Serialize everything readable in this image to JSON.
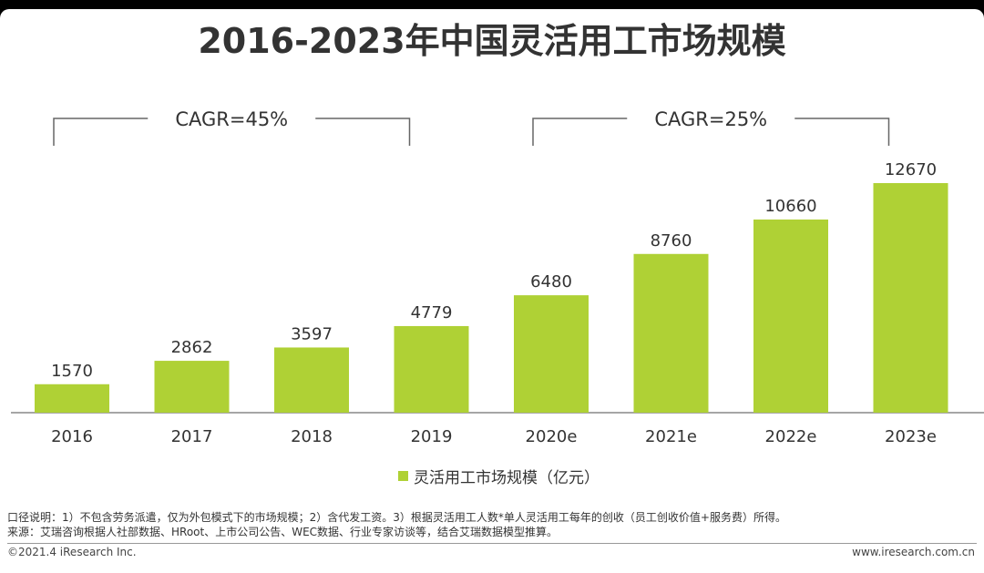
{
  "title": "2016-2023年中国灵活用工市场规模",
  "chart_data": {
    "type": "bar",
    "title": "2016-2023年中国灵活用工市场规模",
    "categories": [
      "2016",
      "2017",
      "2018",
      "2019",
      "2020e",
      "2021e",
      "2022e",
      "2023e"
    ],
    "series": [
      {
        "name": "灵活用工市场规模（亿元）",
        "values": [
          1570,
          2862,
          3597,
          4779,
          6480,
          8760,
          10660,
          12670
        ]
      }
    ],
    "data_labels": [
      "1570",
      "2862",
      "3597",
      "4779",
      "6480",
      "8760",
      "10660",
      "12670"
    ],
    "ylim": [
      0,
      12670
    ],
    "grid": false,
    "legend_position": "bottom",
    "annotations": [
      {
        "text": "CAGR=45%",
        "from_index": 0,
        "to_index": 3
      },
      {
        "text": "CAGR=25%",
        "from_index": 4,
        "to_index": 7
      }
    ]
  },
  "colors": {
    "bar": "#afd135",
    "axis": "#888888",
    "text": "#333333",
    "bracket": "#666666"
  },
  "legend": {
    "label": "灵活用工市场规模（亿元）"
  },
  "notes": {
    "line1": "口径说明：1）不包含劳务派遣，仅为外包模式下的市场规模；2）含代发工资。3）根据灵活用工人数*单人灵活用工每年的创收（员工创收价值+服务费）所得。",
    "line2": "来源：艾瑞咨询根据人社部数据、HRoot、上市公司公告、WEC数据、行业专家访谈等，结合艾瑞数据模型推算。"
  },
  "footer": {
    "copyright": "©2021.4 iResearch Inc.",
    "website": "www.iresearch.com.cn"
  }
}
